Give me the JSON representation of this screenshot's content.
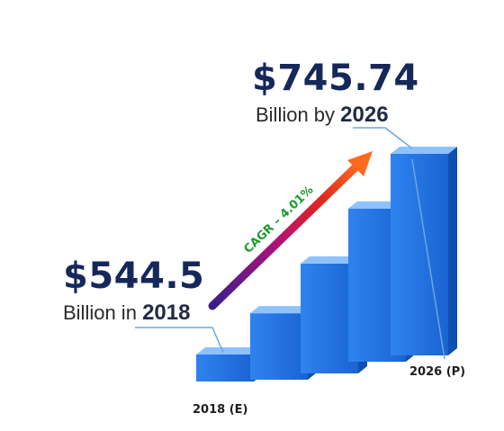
{
  "chart_data": {
    "type": "bar",
    "categories": [
      "2018 (E)",
      "",
      "",
      "",
      "2026 (P)"
    ],
    "values": [
      544.5,
      590,
      640,
      690,
      745.74
    ],
    "title": "",
    "xlabel": "",
    "ylabel": "",
    "unit": "Billion",
    "start": {
      "value_text": "$544.5",
      "label_prefix": "Billion in",
      "label_year": "2018"
    },
    "end": {
      "value_text": "$745.74",
      "label_prefix": "Billion by",
      "label_year": "2026"
    },
    "cagr_label": "CAGR – 4.01%",
    "bar_colors": {
      "front": "#1e6fe0",
      "top": "#8ec2ff",
      "side": "#0f4fb0"
    },
    "arrow_colors": [
      "#3a1d8a",
      "#b0127a",
      "#e0271e",
      "#ff6a1f"
    ],
    "cagr_color": "#1d9a2f"
  }
}
